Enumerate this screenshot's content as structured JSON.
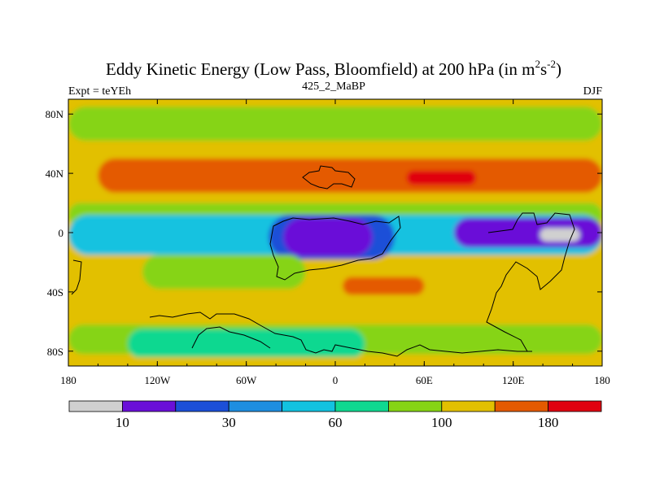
{
  "chart_data": {
    "type": "heatmap",
    "title_main": "Eddy Kinetic Energy (Low Pass, Bloomfield) at 200 hPa (in m",
    "title_sup1": "2",
    "title_mid": "s",
    "title_sup2": "-2",
    "title_close": ")",
    "subtitle_left": "Expt = teYEh",
    "subtitle_center": "425_2_MaBP",
    "subtitle_right": "DJF",
    "x_range": [
      -180,
      180
    ],
    "y_range": [
      -90,
      90
    ],
    "x_ticks": [
      {
        "value": -180,
        "label": "180"
      },
      {
        "value": -120,
        "label": "120W"
      },
      {
        "value": -60,
        "label": "60W"
      },
      {
        "value": 0,
        "label": "0"
      },
      {
        "value": 60,
        "label": "60E"
      },
      {
        "value": 120,
        "label": "120E"
      },
      {
        "value": 180,
        "label": "180"
      }
    ],
    "y_ticks": [
      {
        "value": 80,
        "label": "80N"
      },
      {
        "value": 40,
        "label": "40N"
      },
      {
        "value": 0,
        "label": "0"
      },
      {
        "value": -40,
        "label": "40S"
      },
      {
        "value": -80,
        "label": "80S"
      }
    ],
    "levels": [
      10,
      20,
      30,
      45,
      60,
      80,
      100,
      140,
      180
    ],
    "level_labels": [
      {
        "index": 1,
        "label": "10"
      },
      {
        "index": 3,
        "label": "30"
      },
      {
        "index": 5,
        "label": "60"
      },
      {
        "index": 7,
        "label": "100"
      },
      {
        "index": 9,
        "label": "180"
      }
    ],
    "colors": [
      "#d0d0d0",
      "#6a0fd8",
      "#1c4fd8",
      "#1e8ee0",
      "#12c2e0",
      "#10d890",
      "#86d414",
      "#e2c000",
      "#e45a00",
      "#e00010"
    ],
    "background_level": 100,
    "regions": [
      {
        "level": 80,
        "lon": [
          -180,
          180
        ],
        "lat": [
          62,
          85
        ]
      },
      {
        "level": 130,
        "lon": [
          -180,
          180
        ],
        "lat": [
          22,
          58
        ]
      },
      {
        "level": 160,
        "lon": [
          -160,
          180
        ],
        "lat": [
          27,
          50
        ]
      },
      {
        "level": 200,
        "lon": [
          48,
          95
        ],
        "lat": [
          32,
          42
        ]
      },
      {
        "level": 80,
        "lon": [
          -180,
          180
        ],
        "lat": [
          4,
          20
        ]
      },
      {
        "level": 45,
        "lon": [
          -180,
          180
        ],
        "lat": [
          -15,
          12
        ]
      },
      {
        "level": 25,
        "lon": [
          -45,
          40
        ],
        "lat": [
          -18,
          12
        ]
      },
      {
        "level": 15,
        "lon": [
          -35,
          25
        ],
        "lat": [
          -16,
          10
        ]
      },
      {
        "level": 15,
        "lon": [
          80,
          180
        ],
        "lat": [
          -10,
          10
        ]
      },
      {
        "level": 5,
        "lon": [
          138,
          165
        ],
        "lat": [
          -6,
          3
        ]
      },
      {
        "level": 80,
        "lon": [
          -130,
          -20
        ],
        "lat": [
          -38,
          -15
        ]
      },
      {
        "level": 160,
        "lon": [
          5,
          60
        ],
        "lat": [
          -42,
          -30
        ]
      },
      {
        "level": 130,
        "lon": [
          -180,
          180
        ],
        "lat": [
          -70,
          -50
        ]
      },
      {
        "level": 80,
        "lon": [
          -180,
          180
        ],
        "lat": [
          -82,
          -62
        ]
      },
      {
        "level": 60,
        "lon": [
          -140,
          20
        ],
        "lat": [
          -85,
          -65
        ]
      },
      {
        "level": 130,
        "lon": [
          -180,
          180
        ],
        "lat": [
          -90,
          -84
        ]
      }
    ]
  }
}
